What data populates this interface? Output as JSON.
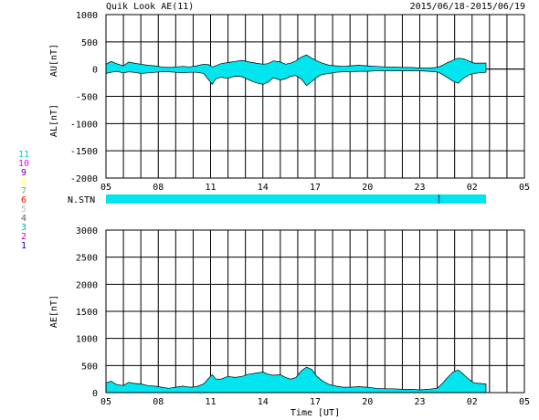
{
  "header": {
    "title": "Quik Look AE(11)",
    "date_range": "2015/06/18-2015/06/19"
  },
  "colors": {
    "fill": "#00e5ee",
    "grid": "#000000",
    "background": "#ffffff",
    "station_marker": "#1a4f9c"
  },
  "stations": [
    {
      "label": "11",
      "color": "#00d0d0"
    },
    {
      "label": "10",
      "color": "#ff00ff"
    },
    {
      "label": "9",
      "color": "#6a00a8"
    },
    {
      "label": "8",
      "color": "#ffff66"
    },
    {
      "label": "7",
      "color": "#33cc66"
    },
    {
      "label": "6",
      "color": "#ff0000"
    },
    {
      "label": "5",
      "color": "#c0c0c0"
    },
    {
      "label": "4",
      "color": "#606060"
    },
    {
      "label": "3",
      "color": "#00b0b0"
    },
    {
      "label": "2",
      "color": "#c000c0"
    },
    {
      "label": "1",
      "color": "#0000cc"
    }
  ],
  "nstn": {
    "label": "N.STN",
    "coverage_hours": [
      5,
      26.8
    ],
    "marker_hour": 24.1
  },
  "chart_data": [
    {
      "type": "area",
      "id": "au_al",
      "ylabel_upper": "AU[nT]",
      "ylabel_lower": "AL[nT]",
      "xlabel": "",
      "ylim": [
        -2000,
        1000
      ],
      "yticks": [
        1000,
        500,
        0,
        -500,
        -1000,
        -1500,
        -2000
      ],
      "xlim_hours": [
        5,
        29
      ],
      "xticks": [
        "05",
        "08",
        "11",
        "14",
        "17",
        "20",
        "23",
        "02",
        "05"
      ],
      "grid": true,
      "hours": [
        5.0,
        5.3,
        5.6,
        6.0,
        6.3,
        6.6,
        7.0,
        7.4,
        7.8,
        8.2,
        8.6,
        9.0,
        9.4,
        9.8,
        10.2,
        10.6,
        10.9,
        11.1,
        11.3,
        11.6,
        12.0,
        12.4,
        12.8,
        13.2,
        13.6,
        14.0,
        14.3,
        14.6,
        15.0,
        15.3,
        15.6,
        15.9,
        16.2,
        16.5,
        16.8,
        17.1,
        17.4,
        17.8,
        18.2,
        18.6,
        19.0,
        19.5,
        20.0,
        20.5,
        21.0,
        21.5,
        22.0,
        22.5,
        23.0,
        23.5,
        24.0,
        24.3,
        24.6,
        24.9,
        25.2,
        25.5,
        25.8,
        26.1,
        26.4,
        26.8
      ],
      "au": [
        90,
        140,
        100,
        60,
        130,
        110,
        90,
        70,
        60,
        40,
        30,
        40,
        50,
        40,
        60,
        90,
        80,
        40,
        60,
        100,
        120,
        140,
        160,
        130,
        110,
        90,
        100,
        150,
        130,
        90,
        110,
        150,
        220,
        260,
        200,
        150,
        110,
        70,
        60,
        50,
        60,
        70,
        60,
        50,
        40,
        40,
        30,
        30,
        20,
        20,
        30,
        70,
        120,
        160,
        200,
        190,
        150,
        110,
        110,
        110
      ],
      "al": [
        -80,
        -60,
        -40,
        -70,
        -50,
        -60,
        -80,
        -70,
        -60,
        -50,
        -50,
        -60,
        -70,
        -60,
        -60,
        -80,
        -200,
        -280,
        -180,
        -150,
        -170,
        -130,
        -140,
        -200,
        -250,
        -280,
        -240,
        -160,
        -200,
        -180,
        -130,
        -120,
        -180,
        -300,
        -230,
        -150,
        -100,
        -80,
        -60,
        -50,
        -50,
        -40,
        -40,
        -30,
        -30,
        -30,
        -30,
        -30,
        -30,
        -40,
        -50,
        -100,
        -160,
        -220,
        -260,
        -170,
        -110,
        -80,
        -70,
        -60
      ]
    },
    {
      "type": "area",
      "id": "ae",
      "ylabel": "AE[nT]",
      "xlabel": "Time [UT]",
      "ylim": [
        0,
        3000
      ],
      "yticks": [
        3000,
        2500,
        2000,
        1500,
        1000,
        500,
        0
      ],
      "xlim_hours": [
        5,
        29
      ],
      "xticks": [
        "05",
        "08",
        "11",
        "14",
        "17",
        "20",
        "23",
        "02",
        "05"
      ],
      "grid": true,
      "hours": [
        5.0,
        5.3,
        5.6,
        6.0,
        6.3,
        6.6,
        7.0,
        7.4,
        7.8,
        8.2,
        8.6,
        9.0,
        9.4,
        9.8,
        10.2,
        10.6,
        10.9,
        11.1,
        11.3,
        11.6,
        12.0,
        12.4,
        12.8,
        13.2,
        13.6,
        14.0,
        14.3,
        14.6,
        15.0,
        15.3,
        15.6,
        15.9,
        16.2,
        16.5,
        16.8,
        17.1,
        17.4,
        17.8,
        18.2,
        18.6,
        19.0,
        19.5,
        20.0,
        20.5,
        21.0,
        21.5,
        22.0,
        22.5,
        23.0,
        23.5,
        24.0,
        24.3,
        24.6,
        24.9,
        25.2,
        25.5,
        25.8,
        26.1,
        26.4,
        26.8
      ],
      "ae": [
        180,
        210,
        150,
        130,
        190,
        170,
        160,
        130,
        120,
        100,
        80,
        100,
        120,
        100,
        110,
        160,
        270,
        330,
        250,
        250,
        300,
        280,
        300,
        340,
        360,
        380,
        340,
        320,
        330,
        280,
        250,
        280,
        400,
        470,
        430,
        300,
        220,
        150,
        120,
        100,
        100,
        110,
        100,
        80,
        70,
        70,
        60,
        60,
        50,
        60,
        80,
        170,
        280,
        380,
        420,
        340,
        250,
        180,
        170,
        160
      ]
    }
  ]
}
